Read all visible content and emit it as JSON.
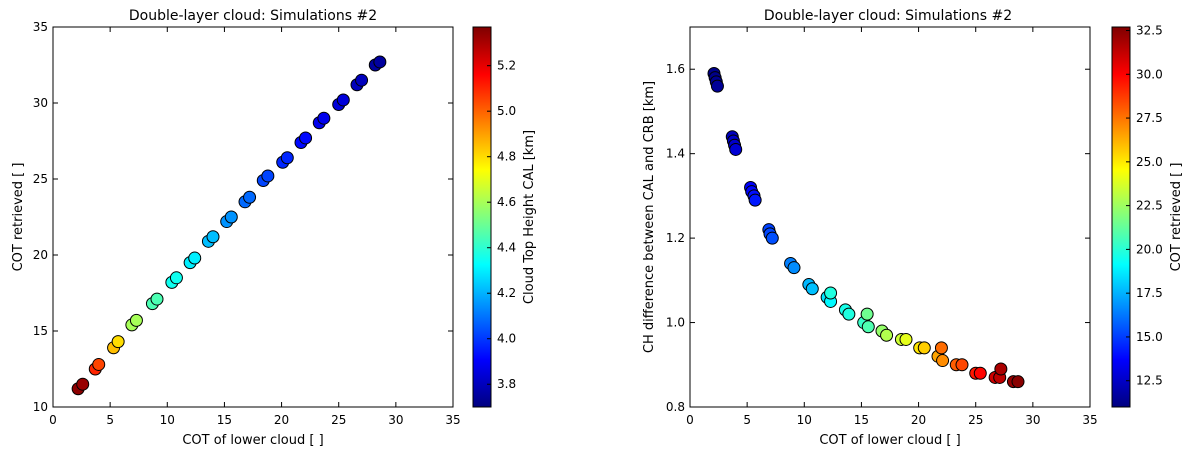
{
  "chart_data": [
    {
      "type": "scatter",
      "title": "Double-layer cloud: Simulations #2",
      "xlabel": "COT of lower cloud [ ]",
      "ylabel": "COT retrieved [ ]",
      "xlim": [
        0,
        35
      ],
      "ylim": [
        10,
        35
      ],
      "xticks": [
        "0",
        "5",
        "10",
        "15",
        "20",
        "25",
        "30",
        "35"
      ],
      "yticks": [
        "10",
        "15",
        "20",
        "25",
        "30",
        "35"
      ],
      "colorbar": {
        "label": "Cloud Top Height CAL [km]",
        "range": [
          3.7,
          5.37
        ],
        "ticks": [
          "3.8",
          "4.0",
          "4.2",
          "4.4",
          "4.6",
          "4.8",
          "5.0",
          "5.2"
        ],
        "colormap": "jet"
      },
      "points": [
        {
          "x": 2.2,
          "y": 11.2,
          "c": 5.35
        },
        {
          "x": 2.6,
          "y": 11.5,
          "c": 5.33
        },
        {
          "x": 3.7,
          "y": 12.5,
          "c": 5.1
        },
        {
          "x": 4.0,
          "y": 12.8,
          "c": 5.05
        },
        {
          "x": 5.3,
          "y": 13.9,
          "c": 4.85
        },
        {
          "x": 5.7,
          "y": 14.3,
          "c": 4.8
        },
        {
          "x": 6.9,
          "y": 15.4,
          "c": 4.6
        },
        {
          "x": 7.3,
          "y": 15.7,
          "c": 4.6
        },
        {
          "x": 8.7,
          "y": 16.8,
          "c": 4.45
        },
        {
          "x": 9.1,
          "y": 17.1,
          "c": 4.45
        },
        {
          "x": 10.4,
          "y": 18.2,
          "c": 4.35
        },
        {
          "x": 10.8,
          "y": 18.5,
          "c": 4.35
        },
        {
          "x": 12.0,
          "y": 19.5,
          "c": 4.3
        },
        {
          "x": 12.4,
          "y": 19.8,
          "c": 4.3
        },
        {
          "x": 13.6,
          "y": 20.9,
          "c": 4.22
        },
        {
          "x": 14.0,
          "y": 21.2,
          "c": 4.22
        },
        {
          "x": 15.2,
          "y": 22.2,
          "c": 4.15
        },
        {
          "x": 15.6,
          "y": 22.5,
          "c": 4.15
        },
        {
          "x": 16.8,
          "y": 23.5,
          "c": 4.08
        },
        {
          "x": 17.2,
          "y": 23.8,
          "c": 4.08
        },
        {
          "x": 18.4,
          "y": 24.9,
          "c": 4.02
        },
        {
          "x": 18.8,
          "y": 25.2,
          "c": 4.02
        },
        {
          "x": 20.1,
          "y": 26.1,
          "c": 3.97
        },
        {
          "x": 20.5,
          "y": 26.4,
          "c": 3.97
        },
        {
          "x": 21.7,
          "y": 27.4,
          "c": 3.92
        },
        {
          "x": 22.1,
          "y": 27.7,
          "c": 3.92
        },
        {
          "x": 23.3,
          "y": 28.7,
          "c": 3.88
        },
        {
          "x": 23.7,
          "y": 29.0,
          "c": 3.88
        },
        {
          "x": 25.0,
          "y": 29.9,
          "c": 3.85
        },
        {
          "x": 25.4,
          "y": 30.2,
          "c": 3.85
        },
        {
          "x": 26.6,
          "y": 31.2,
          "c": 3.8
        },
        {
          "x": 27.0,
          "y": 31.5,
          "c": 3.8
        },
        {
          "x": 28.2,
          "y": 32.5,
          "c": 3.75
        },
        {
          "x": 28.6,
          "y": 32.7,
          "c": 3.75
        }
      ]
    },
    {
      "type": "scatter",
      "title": "Double-layer cloud: Simulations #2",
      "xlabel": "COT of lower cloud [ ]",
      "ylabel": "CH difference between CAL and CRB [km]",
      "xlim": [
        0,
        35
      ],
      "ylim": [
        0.8,
        1.7
      ],
      "xticks": [
        "0",
        "5",
        "10",
        "15",
        "20",
        "25",
        "30",
        "35"
      ],
      "yticks": [
        "0.8",
        "1.0",
        "1.2",
        "1.4",
        "1.6"
      ],
      "colorbar": {
        "label": "COT retrieved [ ]",
        "range": [
          11.0,
          32.7
        ],
        "ticks": [
          "12.5",
          "15.0",
          "17.5",
          "20.0",
          "22.5",
          "25.0",
          "27.5",
          "30.0",
          "32.5"
        ],
        "colormap": "jet"
      },
      "points": [
        {
          "x": 2.1,
          "y": 1.59,
          "c": 11.2
        },
        {
          "x": 2.2,
          "y": 1.58,
          "c": 11.2
        },
        {
          "x": 2.3,
          "y": 1.57,
          "c": 11.3
        },
        {
          "x": 2.4,
          "y": 1.56,
          "c": 11.5
        },
        {
          "x": 3.7,
          "y": 1.44,
          "c": 12.3
        },
        {
          "x": 3.8,
          "y": 1.43,
          "c": 12.5
        },
        {
          "x": 3.9,
          "y": 1.42,
          "c": 12.6
        },
        {
          "x": 4.0,
          "y": 1.41,
          "c": 12.8
        },
        {
          "x": 5.3,
          "y": 1.32,
          "c": 13.6
        },
        {
          "x": 5.4,
          "y": 1.31,
          "c": 13.8
        },
        {
          "x": 5.6,
          "y": 1.3,
          "c": 14.0
        },
        {
          "x": 5.7,
          "y": 1.29,
          "c": 14.2
        },
        {
          "x": 6.9,
          "y": 1.22,
          "c": 15.1
        },
        {
          "x": 7.0,
          "y": 1.21,
          "c": 15.2
        },
        {
          "x": 7.2,
          "y": 1.2,
          "c": 15.4
        },
        {
          "x": 8.8,
          "y": 1.14,
          "c": 16.4
        },
        {
          "x": 9.1,
          "y": 1.13,
          "c": 16.7
        },
        {
          "x": 10.4,
          "y": 1.09,
          "c": 17.6
        },
        {
          "x": 10.7,
          "y": 1.08,
          "c": 17.8
        },
        {
          "x": 12.0,
          "y": 1.06,
          "c": 18.6
        },
        {
          "x": 12.3,
          "y": 1.05,
          "c": 19.0
        },
        {
          "x": 12.3,
          "y": 1.07,
          "c": 19.8
        },
        {
          "x": 13.6,
          "y": 1.03,
          "c": 19.6
        },
        {
          "x": 13.9,
          "y": 1.02,
          "c": 19.8
        },
        {
          "x": 15.2,
          "y": 1.0,
          "c": 20.3
        },
        {
          "x": 15.6,
          "y": 0.99,
          "c": 20.8
        },
        {
          "x": 15.5,
          "y": 1.02,
          "c": 21.5
        },
        {
          "x": 16.8,
          "y": 0.98,
          "c": 22.3
        },
        {
          "x": 17.2,
          "y": 0.97,
          "c": 22.9
        },
        {
          "x": 18.5,
          "y": 0.96,
          "c": 23.5
        },
        {
          "x": 18.9,
          "y": 0.96,
          "c": 24.0
        },
        {
          "x": 20.1,
          "y": 0.94,
          "c": 25.1
        },
        {
          "x": 20.5,
          "y": 0.94,
          "c": 25.6
        },
        {
          "x": 21.7,
          "y": 0.92,
          "c": 26.5
        },
        {
          "x": 22.1,
          "y": 0.91,
          "c": 27.0
        },
        {
          "x": 22.0,
          "y": 0.94,
          "c": 27.7
        },
        {
          "x": 23.3,
          "y": 0.9,
          "c": 28.0
        },
        {
          "x": 23.8,
          "y": 0.9,
          "c": 28.5
        },
        {
          "x": 25.0,
          "y": 0.88,
          "c": 29.5
        },
        {
          "x": 25.4,
          "y": 0.88,
          "c": 29.9
        },
        {
          "x": 26.7,
          "y": 0.87,
          "c": 31.0
        },
        {
          "x": 27.1,
          "y": 0.87,
          "c": 31.4
        },
        {
          "x": 27.2,
          "y": 0.89,
          "c": 31.8
        },
        {
          "x": 28.3,
          "y": 0.86,
          "c": 32.2
        },
        {
          "x": 28.7,
          "y": 0.86,
          "c": 32.5
        }
      ]
    }
  ]
}
